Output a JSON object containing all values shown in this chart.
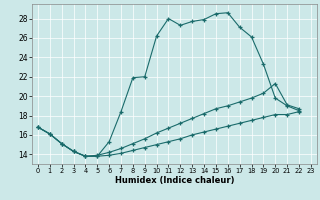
{
  "xlabel": "Humidex (Indice chaleur)",
  "xlim": [
    -0.5,
    23.5
  ],
  "ylim": [
    13.0,
    29.5
  ],
  "yticks": [
    14,
    16,
    18,
    20,
    22,
    24,
    26,
    28
  ],
  "xticks": [
    0,
    1,
    2,
    3,
    4,
    5,
    6,
    7,
    8,
    9,
    10,
    11,
    12,
    13,
    14,
    15,
    16,
    17,
    18,
    19,
    20,
    21,
    22,
    23
  ],
  "bg_color": "#cce8e8",
  "line_color": "#1a6b6b",
  "line1_x": [
    0,
    1,
    2,
    3,
    4,
    5,
    6,
    7,
    8,
    9,
    10,
    11,
    12,
    13,
    14,
    15,
    16,
    17,
    18,
    19,
    20,
    21,
    22
  ],
  "line1_y": [
    16.8,
    16.1,
    15.1,
    14.3,
    13.8,
    13.8,
    15.3,
    18.4,
    21.9,
    22.0,
    26.2,
    28.0,
    27.3,
    27.7,
    27.9,
    28.5,
    28.6,
    27.1,
    26.1,
    23.3,
    19.8,
    19.0,
    18.5
  ],
  "line2_x": [
    0,
    1,
    2,
    3,
    4,
    5,
    6,
    7,
    8,
    9,
    10,
    11,
    12,
    13,
    14,
    15,
    16,
    17,
    18,
    19,
    20,
    21,
    22
  ],
  "line2_y": [
    16.8,
    16.1,
    15.1,
    14.3,
    13.8,
    13.9,
    14.2,
    14.6,
    15.1,
    15.6,
    16.2,
    16.7,
    17.2,
    17.7,
    18.2,
    18.7,
    19.0,
    19.4,
    19.8,
    20.3,
    21.3,
    19.1,
    18.7
  ],
  "line3_x": [
    0,
    1,
    2,
    3,
    4,
    5,
    6,
    7,
    8,
    9,
    10,
    11,
    12,
    13,
    14,
    15,
    16,
    17,
    18,
    19,
    20,
    21,
    22
  ],
  "line3_y": [
    16.8,
    16.1,
    15.1,
    14.3,
    13.8,
    13.8,
    13.9,
    14.1,
    14.4,
    14.7,
    15.0,
    15.3,
    15.6,
    16.0,
    16.3,
    16.6,
    16.9,
    17.2,
    17.5,
    17.8,
    18.1,
    18.1,
    18.4
  ]
}
